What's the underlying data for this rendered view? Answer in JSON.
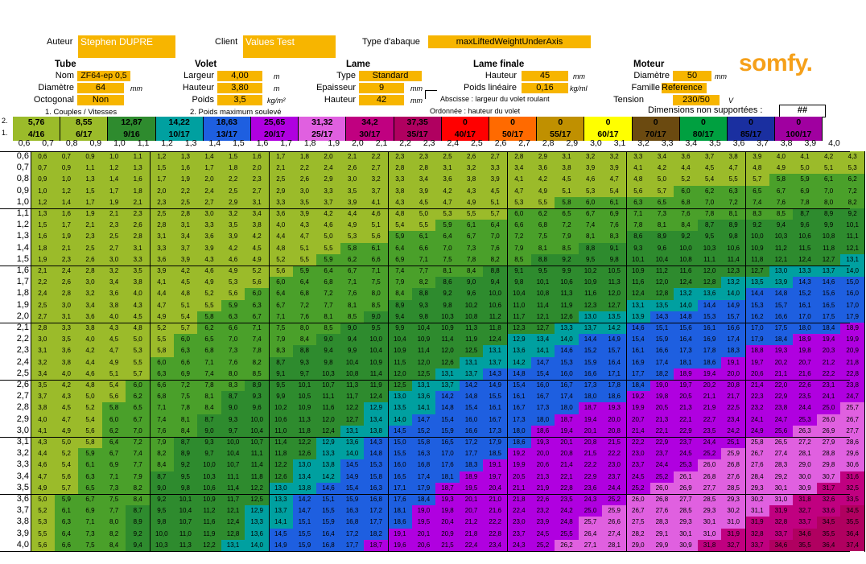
{
  "header": {
    "auteur_label": "Auteur",
    "auteur_value": "Stephen DUPRE",
    "client_label": "Client",
    "client_value": "Values Test",
    "type_label": "Type d'abaque",
    "type_value": "maxLiftedWeightUnderAxis"
  },
  "tube": {
    "title": "Tube",
    "nom_label": "Nom",
    "nom_value": "ZF64-ep 0,5",
    "diametre_label": "Diamètre",
    "diametre_value": "64",
    "diametre_unit": "mm",
    "octogonal_label": "Octogonal",
    "octogonal_value": "Non"
  },
  "volet": {
    "title": "Volet",
    "largeur_label": "Largeur",
    "largeur_value": "4,00",
    "largeur_unit": "m",
    "hauteur_label": "Hauteur",
    "hauteur_value": "3,80",
    "hauteur_unit": "m",
    "poids_label": "Poids",
    "poids_value": "3,5",
    "poids_unit": "kg/m²"
  },
  "lame": {
    "title": "Lame",
    "type_label": "Type",
    "type_value": "Standard",
    "epaisseur_label": "Epaisseur",
    "epaisseur_value": "9",
    "epaisseur_unit": "mm",
    "hauteur_label": "Hauteur",
    "hauteur_value": "42",
    "hauteur_unit": "mm"
  },
  "lame_finale": {
    "title": "Lame finale",
    "hauteur_label": "Hauteur",
    "hauteur_value": "45",
    "hauteur_unit": "mm",
    "poids_label": "Poids linéaire",
    "poids_value": "0,16",
    "poids_unit": "kg/ml",
    "tension_label": "Tension",
    "tension_value": "230/50",
    "tension_unit": "V"
  },
  "moteur": {
    "title": "Moteur",
    "diametre_label": "Diamètre",
    "diametre_value": "50",
    "diametre_unit": "mm",
    "famille_label": "Famille",
    "famille_value": "Reference"
  },
  "logo": "somfy.",
  "notes": {
    "couples": "1. Couples / Vitesses",
    "poids_max": "2. Poids maximum soulevé",
    "abscisse": "Abscisse : largeur du volet roulant",
    "ordonnee": "Ordonnée : hauteur du volet",
    "dims_label": "Dimensions non supportées :",
    "dims_value": "##"
  },
  "bars": {
    "row2_label": "2.",
    "row1_label": "1.",
    "weights": [
      "5,76",
      "8,55",
      "12,87",
      "14,22",
      "18,63",
      "25,65",
      "31,32",
      "34,2",
      "37,35",
      "0",
      "0",
      "0",
      "0",
      "0",
      "0",
      "0",
      "0"
    ],
    "motors": [
      "4/16",
      "6/17",
      "9/16",
      "10/17",
      "13/17",
      "20/17",
      "25/17",
      "30/17",
      "35/17",
      "40/17",
      "50/17",
      "55/17",
      "60/17",
      "70/17",
      "80/17",
      "85/17",
      "100/17"
    ],
    "colors": [
      "#9bbb2a",
      "#9bbb2a",
      "#2e8b2e",
      "#00a0a0",
      "#1e5fe0",
      "#b000e0",
      "#e060e0",
      "#c00080",
      "#b00060",
      "#ff0000",
      "#ff6a00",
      "#c09000",
      "#ffff00",
      "#6b4a10",
      "#00a040",
      "#1a2fa0",
      "#a000a0"
    ]
  },
  "axis": {
    "x_ticks": [
      "0,6",
      "0,7",
      "0,8",
      "0,9",
      "1,0",
      "1,1",
      "1,2",
      "1,3",
      "1,4",
      "1,5",
      "1,6",
      "1,7",
      "1,8",
      "1,9",
      "2,0",
      "2,1",
      "2,2",
      "2,3",
      "2,4",
      "2,5",
      "2,6",
      "2,7",
      "2,8",
      "2,9",
      "3,0",
      "3,1",
      "3,2",
      "3,3",
      "3,4",
      "3,5",
      "3,6",
      "3,7",
      "3,8",
      "3,9",
      "4,0"
    ],
    "y_ticks": [
      "0,6",
      "0,7",
      "0,8",
      "0,9",
      "1,0",
      "1,1",
      "1,2",
      "1,3",
      "1,4",
      "1,5",
      "1,6",
      "1,7",
      "1,8",
      "1,9",
      "2,0",
      "2,1",
      "2,2",
      "2,3",
      "2,4",
      "2,5",
      "2,6",
      "2,7",
      "2,8",
      "2,9",
      "3,0",
      "3,1",
      "3,2",
      "3,3",
      "3,4",
      "3,5",
      "3,6",
      "3,7",
      "3,8",
      "3,9",
      "4,0"
    ]
  },
  "grid": {
    "palette": {
      "1": "#9bbb2a",
      "2": "#4aa02a",
      "3": "#2e8b2e",
      "4": "#00a0a0",
      "5": "#1e5fe0",
      "6": "#b000e0",
      "7": "#e060e0",
      "8": "#c00080",
      "9": "#b00060"
    },
    "first_row": [
      "0,6",
      "0,7",
      "0,9",
      "1,0",
      "1,1",
      "1,2",
      "1,3",
      "1,4",
      "1,5",
      "1,6",
      "1,7",
      "1,8",
      "2,0",
      "2,1",
      "2,2",
      "2,3",
      "2,3",
      "2,5",
      "2,6",
      "2,7",
      "2,8",
      "2,9",
      "3,1",
      "3,2",
      "3,2",
      "3,3",
      "3,4",
      "3,6",
      "3,7",
      "3,8",
      "3,9",
      "4,0",
      "4,1",
      "4,2",
      "4,3"
    ],
    "last_row": [
      "5,6",
      "6,6",
      "7,5",
      "8,4",
      "9,4",
      "10,3",
      "11,3",
      "12,2",
      "13,1",
      "14,0",
      "14,9",
      "15,9",
      "16,8",
      "17,7",
      "18,7",
      "19,6",
      "20,6",
      "21,5",
      "22,4",
      "23,4",
      "24,3",
      "25,2",
      "26,2",
      "27,1",
      "28,1",
      "29,0",
      "29,9",
      "30,9",
      "31,8",
      "32,7",
      "33,7",
      "34,6",
      "35,5",
      "36,4",
      "37,4"
    ]
  }
}
